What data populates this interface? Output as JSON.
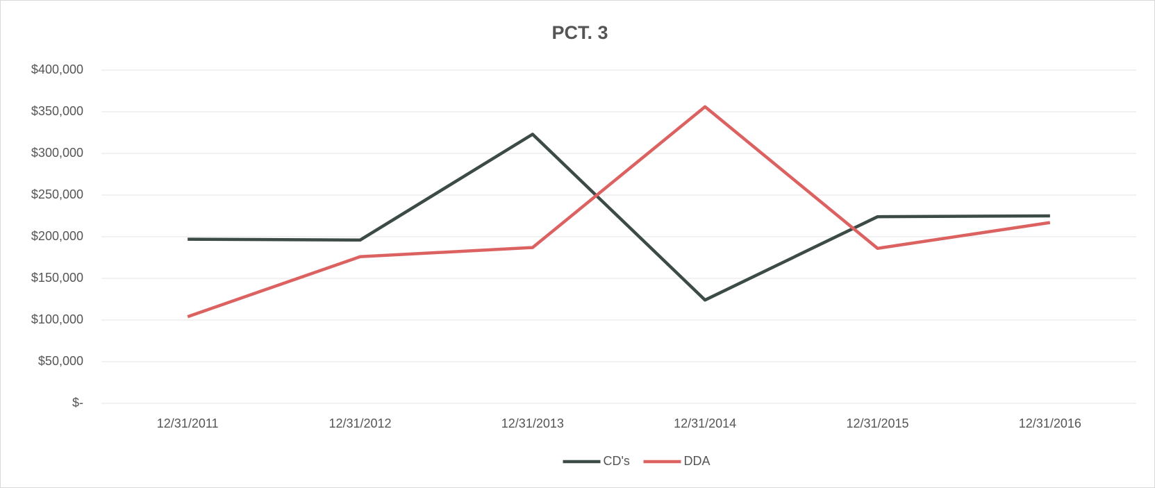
{
  "chart_data": {
    "type": "line",
    "title": "PCT. 3",
    "categories": [
      "12/31/2011",
      "12/31/2012",
      "12/31/2013",
      "12/31/2014",
      "12/31/2015",
      "12/31/2016"
    ],
    "series": [
      {
        "name": "CD's",
        "color": "#3c4b45",
        "values": [
          197000,
          196000,
          323000,
          124000,
          224000,
          225000
        ]
      },
      {
        "name": "DDA",
        "color": "#dc6261",
        "values": [
          104000,
          176000,
          187000,
          356000,
          186000,
          217000
        ]
      }
    ],
    "ylim": [
      0,
      400000
    ],
    "yticks": [
      {
        "value": 0,
        "label": "$-"
      },
      {
        "value": 50000,
        "label": "$50,000"
      },
      {
        "value": 100000,
        "label": "$100,000"
      },
      {
        "value": 150000,
        "label": "$150,000"
      },
      {
        "value": 200000,
        "label": "$200,000"
      },
      {
        "value": 250000,
        "label": "$250,000"
      },
      {
        "value": 300000,
        "label": "$300,000"
      },
      {
        "value": 350000,
        "label": "$350,000"
      },
      {
        "value": 400000,
        "label": "$400,000"
      }
    ],
    "grid": true,
    "legend": "bottom"
  }
}
